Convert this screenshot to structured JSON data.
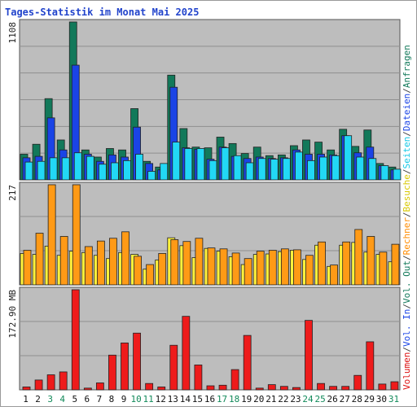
{
  "chart_data": {
    "type": "bar",
    "title": "Tages-Statistik im Monat Mai 2025",
    "days": [
      "1",
      "2",
      "3",
      "4",
      "5",
      "6",
      "7",
      "8",
      "9",
      "10",
      "11",
      "12",
      "13",
      "14",
      "15",
      "16",
      "17",
      "18",
      "19",
      "20",
      "21",
      "22",
      "23",
      "24",
      "25",
      "26",
      "27",
      "28",
      "29",
      "30",
      "31"
    ],
    "weekend_days": [
      "3",
      "4",
      "10",
      "11",
      "17",
      "18",
      "24",
      "25",
      "31"
    ],
    "panels": [
      {
        "name": "hits",
        "scale_label": "1108",
        "ylim": [
          0,
          1108
        ],
        "series": [
          {
            "name": "Anfragen",
            "color": "#12795a",
            "values": [
              180,
              250,
              570,
              280,
              1108,
              210,
              160,
              220,
              210,
              500,
              130,
              90,
              735,
              360,
              230,
              225,
              300,
              255,
              185,
              230,
              170,
              175,
              240,
              280,
              265,
              210,
              355,
              235,
              350,
              115,
              90
            ]
          },
          {
            "name": "Dateien",
            "color": "#1a44e6",
            "values": [
              155,
              165,
              435,
              210,
              805,
              180,
              130,
              175,
              160,
              370,
              115,
              70,
              650,
              225,
              215,
              145,
              230,
              165,
              150,
              160,
              150,
              155,
              210,
              180,
              180,
              175,
              310,
              190,
              230,
              100,
              70
            ]
          },
          {
            "name": "Seiten",
            "color": "#22d8f5",
            "values": [
              125,
              130,
              155,
              155,
              190,
              165,
              110,
              120,
              135,
              180,
              60,
              115,
              265,
              220,
              220,
              135,
              225,
              170,
              120,
              150,
              145,
              150,
              195,
              135,
              160,
              170,
              310,
              160,
              150,
              100,
              75
            ]
          }
        ]
      },
      {
        "name": "visits",
        "scale_label": "217",
        "ylim": [
          0,
          217
        ],
        "series": [
          {
            "name": "Besuche",
            "color": "#fff23c",
            "values": [
              68,
              66,
              84,
              64,
              73,
              70,
              64,
              57,
              70,
              66,
              34,
              54,
              102,
              85,
              59,
              79,
              73,
              61,
              44,
              66,
              67,
              72,
              75,
              55,
              86,
              40,
              86,
              92,
              71,
              66,
              50
            ]
          },
          {
            "name": "Rechner",
            "color": "#ff9a16",
            "values": [
              75,
              112,
              217,
              105,
              217,
              83,
              95,
              101,
              115,
              62,
              44,
              68,
              98,
              94,
              101,
              80,
              78,
              69,
              57,
              73,
              75,
              78,
              76,
              64,
              93,
              43,
              93,
              120,
              105,
              71,
              88
            ]
          }
        ]
      },
      {
        "name": "volume",
        "scale_label": "172.90 MB",
        "ylim": [
          0,
          172.9
        ],
        "series": [
          {
            "name": "Volumen",
            "color": "#ee1b1b",
            "values": [
              5,
              17,
              26,
              31,
              172.9,
              3,
              12,
              60,
              81,
              98,
              11,
              5,
              77,
              127,
              43,
              7,
              8,
              35,
              94,
              3,
              9,
              6,
              4,
              120,
              11,
              6,
              6,
              25,
              83,
              10,
              14
            ]
          },
          {
            "name": "Vol. In",
            "color": "#1a44e6",
            "values": []
          },
          {
            "name": "Vol. Out",
            "color": "#12795a",
            "values": []
          }
        ]
      }
    ],
    "legend_right": [
      {
        "text": "Volumen",
        "color": "#dd1111"
      },
      {
        "text": "/",
        "color": "#444444"
      },
      {
        "text": "Vol. In",
        "color": "#1a44e6"
      },
      {
        "text": "/",
        "color": "#444444"
      },
      {
        "text": "Vol. Out",
        "color": "#12795a"
      },
      {
        "text": "/",
        "color": "#444444"
      },
      {
        "text": "Rechner",
        "color": "#ff8c00"
      },
      {
        "text": "/",
        "color": "#444444"
      },
      {
        "text": "Besuche",
        "color": "#d8c800"
      },
      {
        "text": "/",
        "color": "#444444"
      },
      {
        "text": "Seiten",
        "color": "#14c8e6"
      },
      {
        "text": "/",
        "color": "#444444"
      },
      {
        "text": "Dateien",
        "color": "#1a44e6"
      },
      {
        "text": "/",
        "color": "#444444"
      },
      {
        "text": "Anfragen",
        "color": "#12795a"
      }
    ],
    "grid": true
  }
}
